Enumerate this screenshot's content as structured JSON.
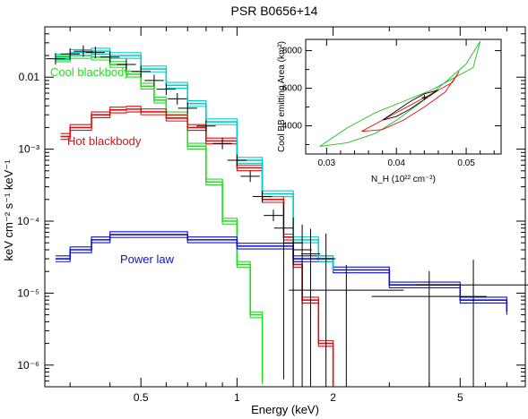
{
  "chart_data": [
    {
      "type": "line",
      "title": "PSR B0656+14",
      "xlabel": "Energy (keV)",
      "ylabel": "keV cm⁻² s⁻¹ keV⁻¹",
      "x_scale": "log",
      "y_scale": "log",
      "xlim": [
        0.25,
        8.0
      ],
      "ylim": [
        5e-07,
        0.05
      ],
      "x_ticks": [
        "0.5",
        "1",
        "2",
        "5"
      ],
      "y_ticks": [
        "0.01",
        "10⁻³",
        "10⁻⁴",
        "10⁻⁵",
        "10⁻⁶"
      ],
      "annotations": [
        "Cool blackbody",
        "Hot blackbody",
        "Power law"
      ],
      "colors": {
        "cool": "#22dd22",
        "hot": "#dd1111",
        "power": "#1111cc",
        "total": "#00cccc",
        "data": "#000000"
      },
      "series": [
        {
          "key": "cool",
          "label_text": "Cool blackbody",
          "x": [
            0.27,
            0.3,
            0.35,
            0.4,
            0.45,
            0.5,
            0.55,
            0.6,
            0.7,
            0.8,
            0.9,
            1.0,
            1.1,
            1.2
          ],
          "y": [
            0.018,
            0.02,
            0.019,
            0.015,
            0.011,
            0.0075,
            0.0048,
            0.003,
            0.0011,
            0.00035,
            0.0001,
            2.5e-05,
            5e-06,
            6e-07
          ]
        },
        {
          "key": "hot",
          "label_text": "Hot blackbody",
          "x": [
            0.28,
            0.3,
            0.35,
            0.4,
            0.45,
            0.5,
            0.6,
            0.7,
            0.8,
            1.0,
            1.2,
            1.4,
            1.5,
            1.6,
            1.8,
            2.0
          ],
          "y": [
            0.0015,
            0.002,
            0.003,
            0.0035,
            0.0036,
            0.0033,
            0.0027,
            0.002,
            0.0013,
            0.00055,
            0.0002,
            6e-05,
            2.5e-05,
            8e-06,
            2e-06,
            5e-07
          ]
        },
        {
          "key": "power",
          "label_text": "Power law",
          "x": [
            0.27,
            0.3,
            0.35,
            0.4,
            0.5,
            0.7,
            1.0,
            1.5,
            2.0,
            3.0,
            5.0,
            7.0
          ],
          "y": [
            3e-05,
            4e-05,
            5.5e-05,
            6.5e-05,
            6.5e-05,
            5.5e-05,
            4.5e-05,
            3e-05,
            2.1e-05,
            1.3e-05,
            8e-06,
            5.5e-06
          ]
        },
        {
          "key": "total",
          "x": [
            0.27,
            0.3,
            0.35,
            0.4,
            0.5,
            0.6,
            0.7,
            0.8,
            1.0,
            1.2,
            1.5,
            1.8,
            2.0
          ],
          "y": [
            0.019,
            0.022,
            0.023,
            0.02,
            0.013,
            0.0077,
            0.0043,
            0.0024,
            0.0007,
            0.00024,
            5.5e-05,
            3e-05,
            2.2e-05
          ]
        }
      ],
      "data_points": {
        "x": [
          0.27,
          0.3,
          0.33,
          0.36,
          0.4,
          0.45,
          0.5,
          0.55,
          0.6,
          0.65,
          0.7,
          0.8,
          0.9,
          1.0,
          1.1,
          1.2,
          1.3,
          1.4,
          1.5,
          1.6,
          1.7,
          1.9,
          2.2,
          4.0,
          5.5
        ],
        "y": [
          0.018,
          0.021,
          0.023,
          0.022,
          0.019,
          0.015,
          0.012,
          0.009,
          0.0068,
          0.005,
          0.0037,
          0.0021,
          0.0012,
          0.0007,
          0.00042,
          0.00022,
          0.00012,
          8e-05,
          5e-05,
          4e-05,
          3.5e-05,
          3e-05,
          1.1e-05,
          9e-06,
          1.3e-05
        ]
      }
    },
    {
      "type": "line",
      "xlabel": "N_H (10²² cm⁻²)",
      "ylabel": "Cool BB emitting Area (km²)",
      "xlim": [
        0.027,
        0.055
      ],
      "ylim": [
        2500,
        8600
      ],
      "x_ticks": [
        "0.03",
        "0.04",
        "0.05"
      ],
      "y_ticks": [
        "4000",
        "6000",
        "8000"
      ],
      "contours": [
        {
          "color": "#22bb22",
          "x": [
            0.029,
            0.033,
            0.037,
            0.04,
            0.043,
            0.046,
            0.05,
            0.052,
            0.051,
            0.048,
            0.045,
            0.041,
            0.037,
            0.033,
            0.029
          ],
          "y": [
            2900,
            3100,
            3600,
            4300,
            5100,
            6000,
            7300,
            8500,
            7100,
            6500,
            5900,
            5300,
            4700,
            3900,
            2900
          ]
        },
        {
          "color": "#dd1111",
          "x": [
            0.035,
            0.038,
            0.041,
            0.044,
            0.047,
            0.049,
            0.048,
            0.045,
            0.042,
            0.039,
            0.035
          ],
          "y": [
            3700,
            3800,
            4300,
            5000,
            5800,
            6900,
            6300,
            5700,
            5100,
            4500,
            3700
          ]
        },
        {
          "color": "#000000",
          "x": [
            0.038,
            0.04,
            0.042,
            0.044,
            0.046,
            0.044,
            0.042,
            0.04,
            0.038
          ],
          "y": [
            4300,
            4500,
            4900,
            5400,
            5900,
            5700,
            5300,
            4800,
            4300
          ]
        }
      ],
      "best_fit": {
        "x": 0.044,
        "y": 5500
      }
    }
  ]
}
